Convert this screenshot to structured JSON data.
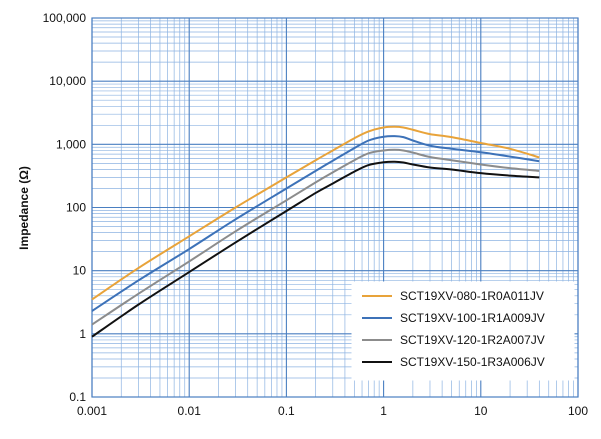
{
  "chart_data": {
    "type": "line",
    "title": "",
    "xlabel": "",
    "ylabel": "Impedance (Ω)",
    "xscale": "log",
    "yscale": "log",
    "xlim": [
      0.001,
      100
    ],
    "ylim": [
      0.1,
      100000
    ],
    "grid": true,
    "legend_position": "bottom-right",
    "x_tick_labels": [
      "0.001",
      "0.01",
      "0.1",
      "1",
      "10",
      "100"
    ],
    "y_tick_labels": [
      "0.1",
      "1",
      "10",
      "100",
      "1,000",
      "10,000",
      "100,000"
    ],
    "series": [
      {
        "name": "SCT19XV-080-1R0A011JV",
        "color": "#E8A33A",
        "x": [
          0.001,
          0.003,
          0.01,
          0.03,
          0.1,
          0.2,
          0.3,
          0.5,
          0.7,
          1.0,
          1.3,
          1.6,
          2.0,
          3.0,
          5.0,
          10.0,
          20.0,
          40.0
        ],
        "y": [
          3.5,
          11,
          35,
          100,
          300,
          560,
          800,
          1250,
          1600,
          1850,
          1900,
          1850,
          1700,
          1450,
          1300,
          1050,
          850,
          620
        ]
      },
      {
        "name": "SCT19XV-100-1R1A009JV",
        "color": "#3D72B8",
        "x": [
          0.001,
          0.003,
          0.01,
          0.03,
          0.1,
          0.2,
          0.3,
          0.5,
          0.7,
          1.0,
          1.3,
          1.6,
          2.0,
          3.0,
          5.0,
          10.0,
          20.0,
          40.0
        ],
        "y": [
          2.3,
          7,
          22,
          65,
          200,
          380,
          550,
          870,
          1150,
          1320,
          1350,
          1300,
          1150,
          950,
          850,
          750,
          640,
          540
        ]
      },
      {
        "name": "SCT19XV-120-1R2A007JV",
        "color": "#8C8C8C",
        "x": [
          0.001,
          0.003,
          0.01,
          0.03,
          0.1,
          0.2,
          0.3,
          0.5,
          0.7,
          1.0,
          1.3,
          1.6,
          2.0,
          3.0,
          5.0,
          10.0,
          20.0,
          40.0
        ],
        "y": [
          1.4,
          4.3,
          14,
          42,
          130,
          250,
          360,
          560,
          720,
          800,
          820,
          800,
          740,
          630,
          560,
          480,
          420,
          380
        ]
      },
      {
        "name": "SCT19XV-150-1R3A006JV",
        "color": "#111111",
        "x": [
          0.001,
          0.003,
          0.01,
          0.03,
          0.1,
          0.2,
          0.3,
          0.5,
          0.7,
          1.0,
          1.3,
          1.6,
          2.0,
          3.0,
          5.0,
          10.0,
          20.0,
          40.0
        ],
        "y": [
          0.9,
          2.9,
          9.5,
          28,
          88,
          170,
          240,
          370,
          470,
          520,
          530,
          515,
          480,
          430,
          400,
          350,
          320,
          300
        ]
      }
    ]
  }
}
